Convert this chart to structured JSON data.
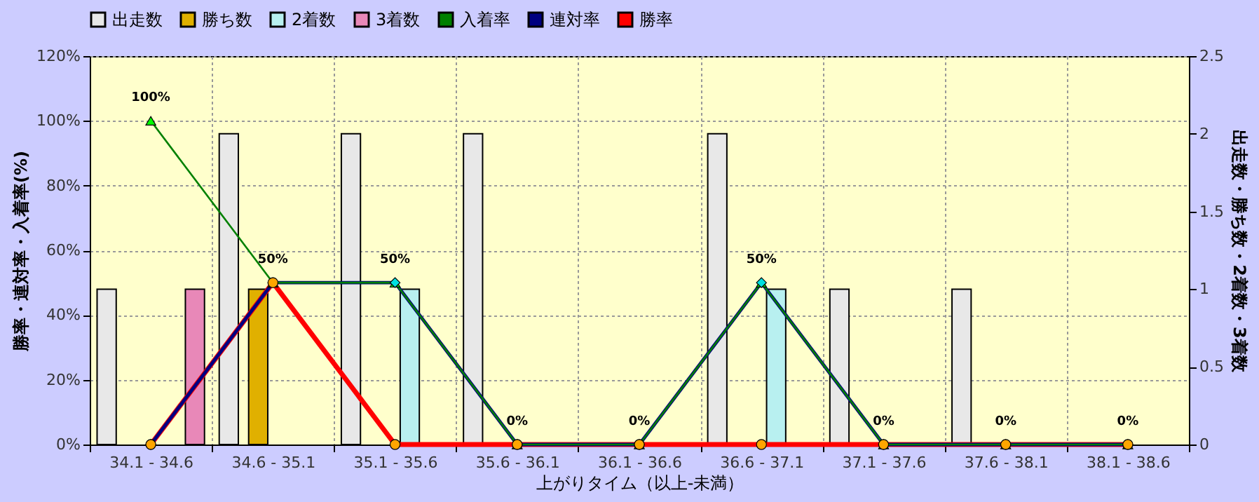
{
  "chart_data": {
    "type": "bar",
    "xlabel": "上がりタイム（以上-未満）",
    "ylabel": "勝率・連対率・入着率(%)",
    "y2label": "出走数・勝ち数・2着数・3着数",
    "categories": [
      "34.1 - 34.6",
      "34.6 - 35.1",
      "35.1 - 35.6",
      "35.6 - 36.1",
      "36.1 - 36.6",
      "36.6 - 37.1",
      "37.1 - 37.6",
      "37.6 - 38.1",
      "38.1 - 38.6"
    ],
    "series": [
      {
        "name": "出走数",
        "axis": "y2",
        "color": "#e8e8e8",
        "values": [
          1,
          2,
          2,
          2,
          0,
          2,
          1,
          1,
          0
        ]
      },
      {
        "name": "勝ち数",
        "axis": "y2",
        "color": "#e0b000",
        "values": [
          0,
          1,
          0,
          0,
          0,
          0,
          0,
          0,
          0
        ]
      },
      {
        "name": "2着数",
        "axis": "y2",
        "color": "#b8f0f0",
        "values": [
          0,
          0,
          1,
          0,
          0,
          1,
          0,
          0,
          0
        ]
      },
      {
        "name": "3着数",
        "axis": "y2",
        "color": "#e888b8",
        "values": [
          1,
          0,
          0,
          0,
          0,
          0,
          0,
          0,
          0
        ]
      },
      {
        "name": "入着率",
        "type": "line",
        "color": "#008000",
        "marker": "triangle",
        "values": [
          100,
          50,
          50,
          0,
          0,
          50,
          0,
          0,
          0
        ],
        "value_labels": [
          "100%",
          "50%",
          "50%",
          "0%",
          "0%",
          "50%",
          "0%",
          "0%",
          "0%"
        ]
      },
      {
        "name": "連対率",
        "type": "line",
        "color": "#000080",
        "marker": "diamond",
        "values": [
          0,
          50,
          50,
          0,
          0,
          50,
          0,
          0,
          0
        ]
      },
      {
        "name": "勝率",
        "type": "line",
        "color": "#ff0000",
        "marker": "circle",
        "values": [
          0,
          50,
          0,
          0,
          0,
          0,
          0,
          0,
          0
        ]
      }
    ],
    "ylim": [
      0,
      120
    ],
    "yticks": [
      {
        "value": 0,
        "label": "0%"
      },
      {
        "value": 20,
        "label": "20%"
      },
      {
        "value": 40,
        "label": "40%"
      },
      {
        "value": 60,
        "label": "60%"
      },
      {
        "value": 80,
        "label": "80%"
      },
      {
        "value": 100,
        "label": "100%"
      },
      {
        "value": 120,
        "label": "120%"
      }
    ],
    "y2lim": [
      0,
      2.5
    ],
    "y2ticks": [
      0,
      0.5,
      1,
      1.5,
      2,
      2.5
    ],
    "grid": true,
    "legend": "top left",
    "line_style": "solid"
  }
}
